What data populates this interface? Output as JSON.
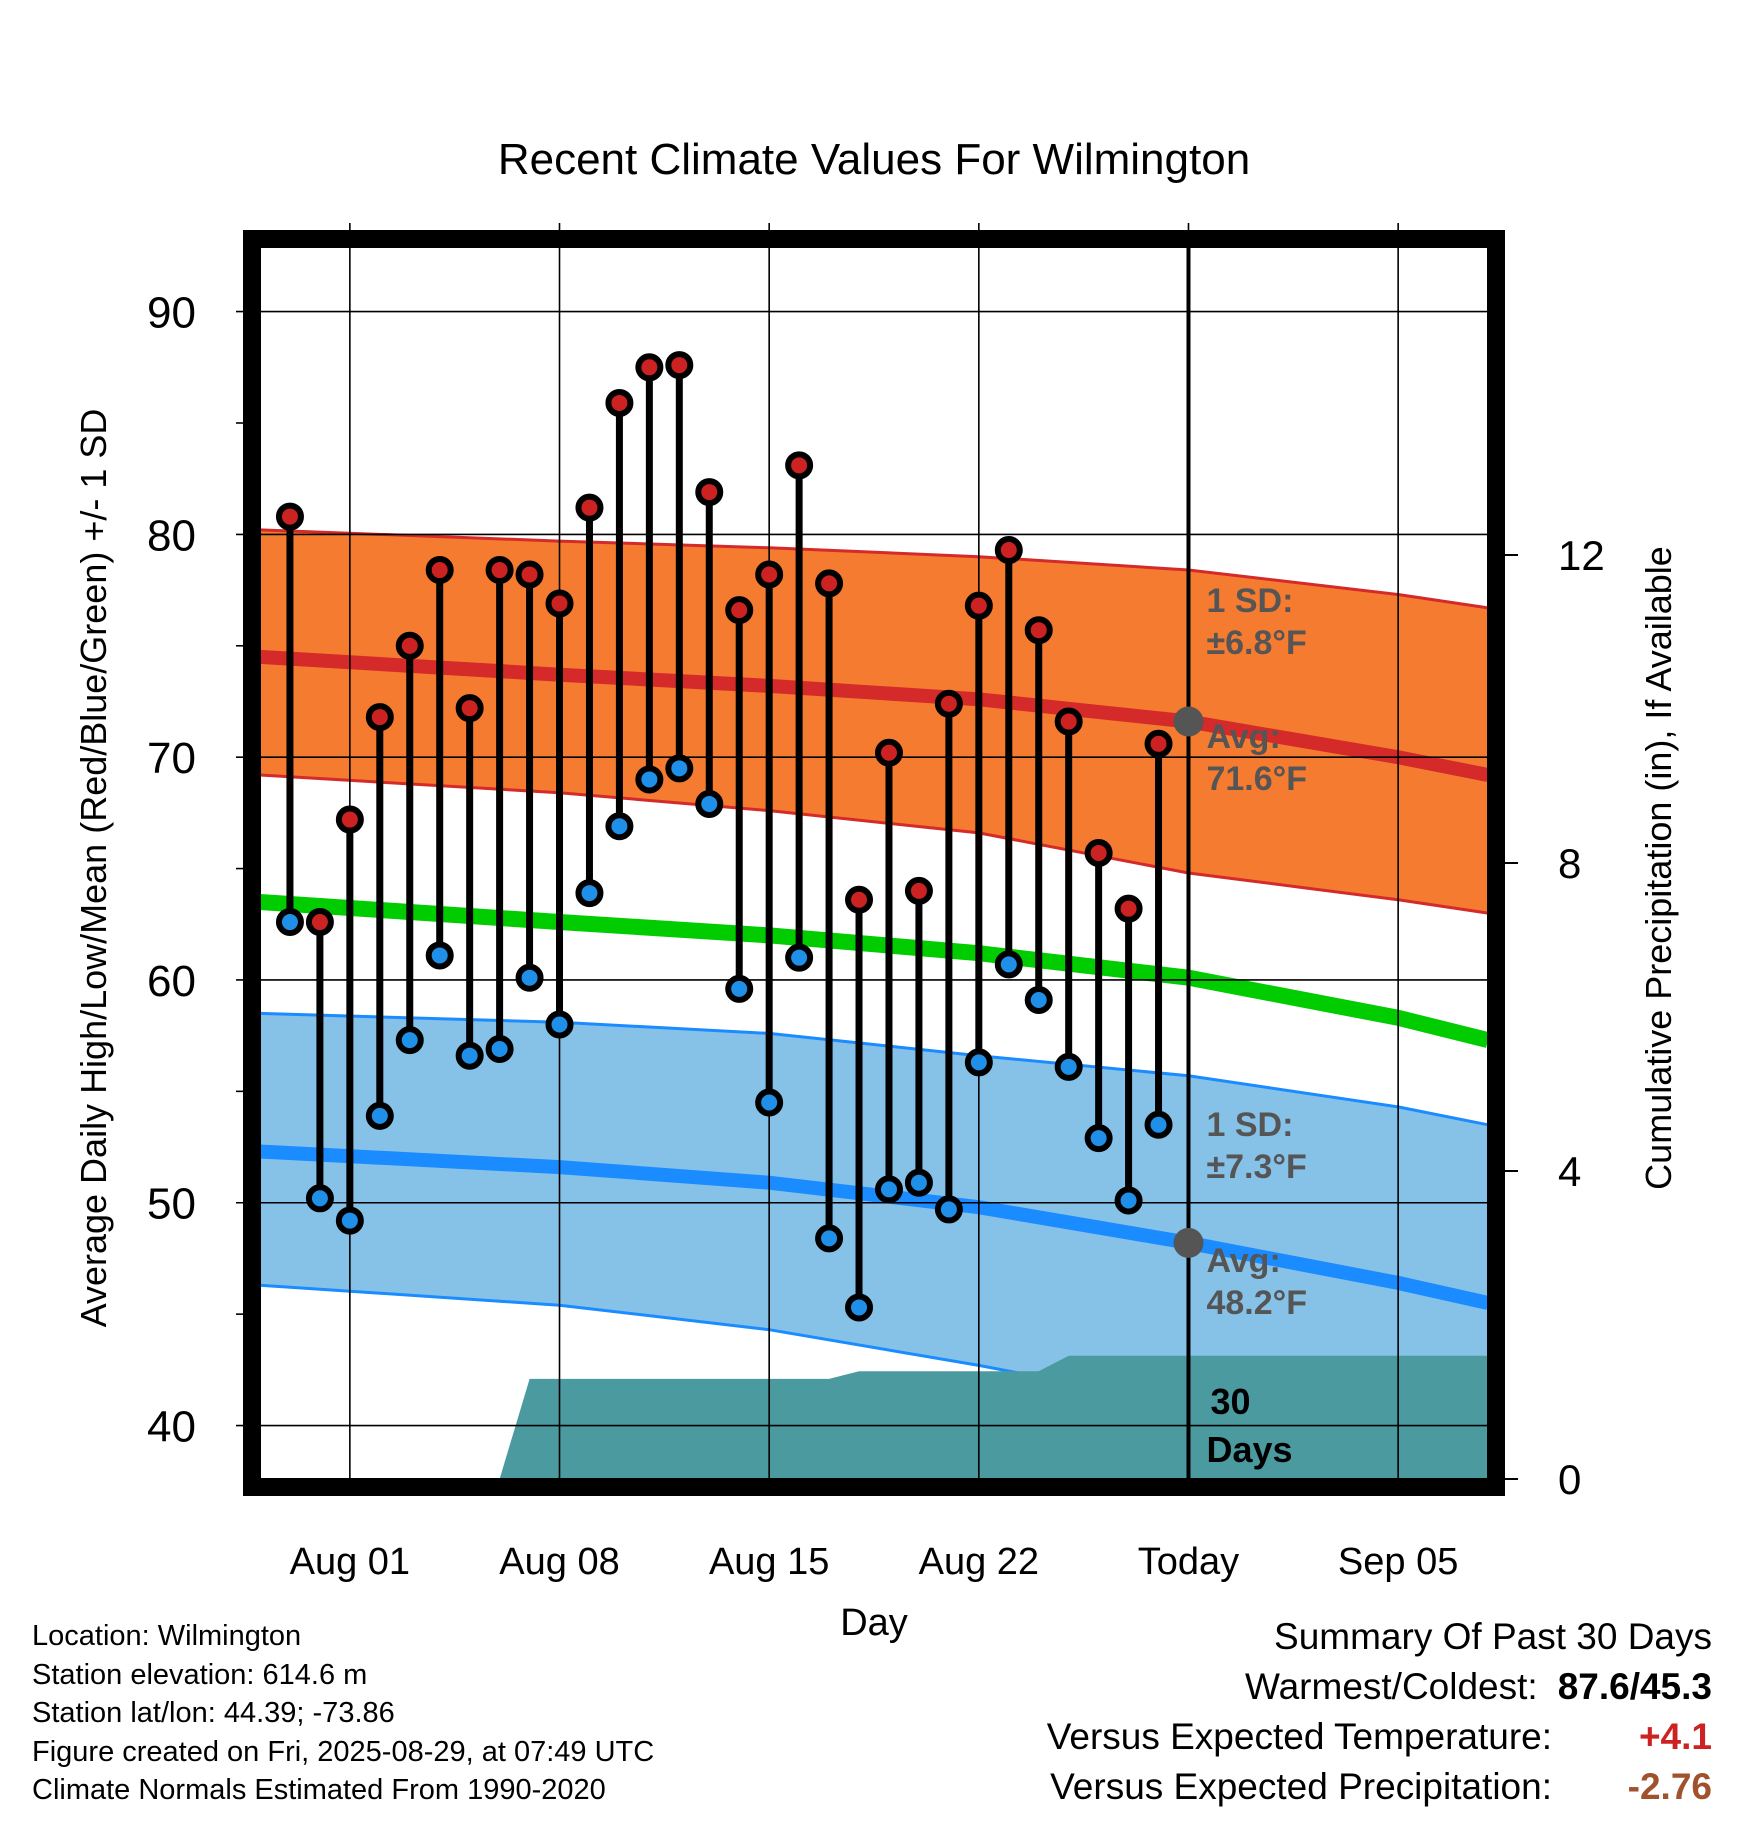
{
  "chart_data": {
    "type": "line",
    "title": "Recent Climate Values For Wilmington",
    "xlabel": "Day",
    "ylabel": "Average Daily High/Low/Mean (Red/Blue/Green) +/- 1 SD",
    "y2label": "Cumulative Precipitation (in), If Available",
    "x_ticks": [
      "Aug 01",
      "Aug 08",
      "Aug 15",
      "Aug 22",
      "Today",
      "Sep 05"
    ],
    "y_ticks": [
      "40",
      "50",
      "60",
      "70",
      "80",
      "90"
    ],
    "y2_ticks": [
      "0",
      "4",
      "8",
      "12"
    ],
    "ylim": [
      37.6,
      92.9
    ],
    "y2lim": [
      0,
      16
    ],
    "xlim": [
      "2025-07-29",
      "2025-09-08"
    ],
    "today": "2025-08-29",
    "colors": {
      "high_band": "#f47b2f",
      "high_line": "#d42a2a",
      "low_band": "#86c1e8",
      "low_line": "#1a8cff",
      "mean_line": "#00cc00",
      "precip": "#4a9aa0",
      "high_dot": "#cc2222",
      "low_dot": "#1f8fe8",
      "marker": "#555555",
      "annotation": "#555555"
    },
    "normal_dates": [
      "2025-07-29",
      "2025-08-08",
      "2025-08-15",
      "2025-08-22",
      "2025-08-29",
      "2025-09-05",
      "2025-09-08"
    ],
    "normal_high": [
      74.5,
      73.7,
      73.2,
      72.6,
      71.6,
      70.0,
      69.2
    ],
    "normal_high_plus_sd": [
      80.2,
      79.7,
      79.4,
      79.0,
      78.4,
      77.3,
      76.7
    ],
    "normal_high_minus_sd": [
      69.2,
      68.4,
      67.6,
      66.6,
      64.8,
      63.6,
      63.0
    ],
    "normal_low": [
      52.3,
      51.6,
      50.9,
      49.8,
      48.2,
      46.4,
      45.5
    ],
    "normal_low_plus_sd": [
      58.5,
      58.1,
      57.6,
      56.6,
      55.7,
      54.3,
      53.5
    ],
    "normal_low_minus_sd": [
      46.3,
      45.4,
      44.3,
      42.7,
      40.9,
      39.0,
      38.1
    ],
    "normal_mean": [
      63.5,
      62.6,
      62.0,
      61.2,
      60.1,
      58.3,
      57.3
    ],
    "series": [
      {
        "name": "High",
        "x": [
          "2025-07-30",
          "2025-07-31",
          "2025-08-01",
          "2025-08-02",
          "2025-08-03",
          "2025-08-04",
          "2025-08-05",
          "2025-08-06",
          "2025-08-07",
          "2025-08-08",
          "2025-08-09",
          "2025-08-10",
          "2025-08-11",
          "2025-08-12",
          "2025-08-13",
          "2025-08-14",
          "2025-08-15",
          "2025-08-16",
          "2025-08-17",
          "2025-08-18",
          "2025-08-19",
          "2025-08-20",
          "2025-08-21",
          "2025-08-22",
          "2025-08-23",
          "2025-08-24",
          "2025-08-25",
          "2025-08-26",
          "2025-08-27",
          "2025-08-28"
        ],
        "values": [
          80.8,
          62.6,
          67.2,
          71.8,
          75.0,
          78.4,
          72.2,
          78.4,
          78.2,
          76.9,
          81.2,
          85.9,
          87.5,
          87.6,
          81.9,
          76.6,
          78.2,
          83.1,
          77.8,
          63.6,
          70.2,
          64.0,
          72.4,
          76.8,
          79.3,
          75.7,
          71.6,
          65.7,
          63.2,
          70.6
        ]
      },
      {
        "name": "Low",
        "x": [
          "2025-07-30",
          "2025-07-31",
          "2025-08-01",
          "2025-08-02",
          "2025-08-03",
          "2025-08-04",
          "2025-08-05",
          "2025-08-06",
          "2025-08-07",
          "2025-08-08",
          "2025-08-09",
          "2025-08-10",
          "2025-08-11",
          "2025-08-12",
          "2025-08-13",
          "2025-08-14",
          "2025-08-15",
          "2025-08-16",
          "2025-08-17",
          "2025-08-18",
          "2025-08-19",
          "2025-08-20",
          "2025-08-21",
          "2025-08-22",
          "2025-08-23",
          "2025-08-24",
          "2025-08-25",
          "2025-08-26",
          "2025-08-27",
          "2025-08-28"
        ],
        "values": [
          62.6,
          50.2,
          49.2,
          53.9,
          57.3,
          61.1,
          56.6,
          56.9,
          60.1,
          58.0,
          63.9,
          66.9,
          69.0,
          69.5,
          67.9,
          59.6,
          54.5,
          61.0,
          48.4,
          45.3,
          50.6,
          50.9,
          49.7,
          56.3,
          60.7,
          59.1,
          56.1,
          52.9,
          50.1,
          53.5
        ]
      }
    ],
    "precip_x": [
      "2025-08-06",
      "2025-08-07",
      "2025-08-17",
      "2025-08-18",
      "2025-08-24",
      "2025-08-25",
      "2025-09-08"
    ],
    "precip_values": [
      0.0,
      1.3,
      1.3,
      1.4,
      1.4,
      1.6,
      1.6
    ],
    "annotations": {
      "high_sd_label": "1 SD:",
      "high_sd_value": "±6.8°F",
      "high_avg_label": "Avg:",
      "high_avg_value": "71.6°F",
      "low_sd_label": "1 SD:",
      "low_sd_value": "±7.3°F",
      "low_avg_label": "Avg:",
      "low_avg_value": "48.2°F",
      "days_count": "30",
      "days_label": "Days"
    }
  },
  "footer": {
    "location": "Location: Wilmington",
    "elevation": "Station elevation: 614.6 m",
    "latlon": "Station lat/lon: 44.39; -73.86",
    "created": "Figure created on Fri, 2025-08-29, at 07:49 UTC",
    "normals": "Climate Normals Estimated From 1990-2020"
  },
  "summary": {
    "title": "Summary Of Past 30 Days",
    "warmest_coldest_label": "Warmest/Coldest:",
    "warmest_coldest_value": "87.6/45.3",
    "temp_label": "Versus Expected Temperature:",
    "temp_value": "+4.1",
    "temp_color": "#cc2222",
    "precip_label": "Versus Expected Precipitation:",
    "precip_value": "-2.76",
    "precip_color": "#a0522d"
  }
}
